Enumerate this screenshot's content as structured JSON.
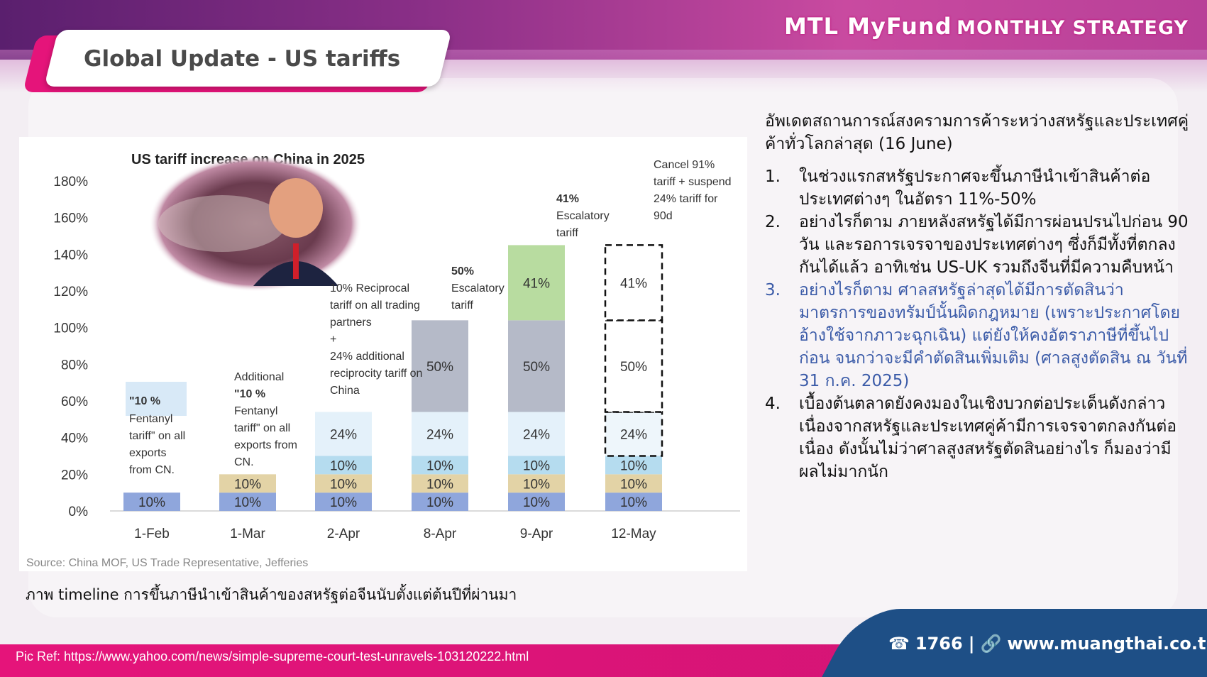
{
  "header": {
    "brand_main": "MTL MyFund",
    "brand_sub": "MONTHLY STRATEGY",
    "title": "Global Update - US tariffs"
  },
  "chart_data": {
    "type": "bar",
    "stacked": true,
    "title": "US tariff increase on China in 2025",
    "source": "Source: China MOF, US Trade Representative, Jefferies",
    "categories": [
      "1-Feb",
      "1-Mar",
      "2-Apr",
      "8-Apr",
      "9-Apr",
      "12-May"
    ],
    "ylim": [
      0,
      180
    ],
    "yticks": [
      "0%",
      "20%",
      "40%",
      "60%",
      "80%",
      "100%",
      "120%",
      "140%",
      "160%",
      "180%"
    ],
    "series": [
      {
        "values": [
          10,
          10,
          10,
          10,
          10,
          10
        ],
        "labels": [
          "10%",
          "10%",
          "10%",
          "10%",
          "10%",
          "10%"
        ],
        "color": "#8fa6dc"
      },
      {
        "values": [
          0,
          10,
          10,
          10,
          10,
          10
        ],
        "labels": [
          "",
          "10%",
          "10%",
          "10%",
          "10%",
          "10%"
        ],
        "color": "#e3d3a6"
      },
      {
        "values": [
          0,
          0,
          10,
          10,
          10,
          10
        ],
        "labels": [
          "",
          "",
          "10%",
          "10%",
          "10%",
          "10%"
        ],
        "color": "#b5dcef"
      },
      {
        "values": [
          0,
          0,
          24,
          24,
          24,
          24
        ],
        "labels": [
          "",
          "",
          "24%",
          "24%",
          "24%",
          "24%"
        ],
        "color": "#e4f1fa"
      },
      {
        "values": [
          0,
          0,
          0,
          50,
          50,
          50
        ],
        "labels": [
          "",
          "",
          "",
          "50%",
          "50%",
          "50%"
        ],
        "color": "#b5bac8"
      },
      {
        "values": [
          0,
          0,
          0,
          0,
          41,
          41
        ],
        "labels": [
          "",
          "",
          "",
          "",
          "41%",
          "41%"
        ],
        "color": "#b8dca0"
      }
    ],
    "dashed_category": "12-May",
    "annotations": {
      "feb_1": "\"10 %",
      "feb_2": "Fentanyl",
      "feb_3": "tariff\" on all",
      "feb_4": "exports",
      "feb_5": "from CN.",
      "mar_1": "Additional",
      "mar_2": "\"10 %",
      "mar_3": "Fentanyl",
      "mar_4": "tariff\" on all",
      "mar_5": "exports from",
      "mar_6": "CN.",
      "apr2_1": "10% Reciprocal",
      "apr2_2": "tariff on all trading",
      "apr2_3": "partners",
      "apr2_4": "+",
      "apr2_5": "24% additional",
      "apr2_6": "reciprocity tariff on",
      "apr2_7": "China",
      "apr8_1": "50%",
      "apr8_2": "Escalatory",
      "apr8_3": "tariff",
      "apr9_1": "41%",
      "apr9_2": "Escalatory",
      "apr9_3": "tariff",
      "may_1": "Cancel 91%",
      "may_2": "tariff + suspend",
      "may_3": "24% tariff for",
      "may_4": "90d"
    }
  },
  "caption": "ภาพ timeline การขึ้นภาษีนำเข้าสินค้าของสหรัฐต่อจีนนับตั้งแต่ต้นปีที่ผ่านมา",
  "right_text": {
    "intro": "อัพเดตสถานการณ์สงครามการค้าระหว่างสหรัฐและประเทศคู่ค้าทั่วโลกล่าสุด (16 June)",
    "points": [
      {
        "num": "1.",
        "text": "ในช่วงแรกสหรัฐประกาศจะขึ้นภาษีนำเข้าสินค้าต่อประเทศต่างๆ ในอัตรา 11%-50%"
      },
      {
        "num": "2.",
        "text": "อย่างไรก็ตาม ภายหลังสหรัฐได้มีการผ่อนปรนไปก่อน 90 วัน และรอการเจรจาของประเทศต่างๆ ซึ่งก็มีทั้งที่ตกลงกันได้แล้ว อาทิเช่น US-UK รวมถึงจีนที่มีความคืบหน้า"
      },
      {
        "num": "3.",
        "text": "อย่างไรก็ตาม ศาลสหรัฐล่าสุดได้มีการตัดสินว่ามาตรการของทรัมป์นั้นผิดกฎหมาย (เพราะประกาศโดยอ้างใช้จากภาวะฉุกเฉิน) แต่ยังให้คงอัตราภาษีที่ขึ้นไปก่อน จนกว่าจะมีคำตัดสินเพิ่มเติม (ศาลสูงตัดสิน ณ วันที่ 31 ก.ค. 2025)"
      },
      {
        "num": "4.",
        "text": "เบื้องต้นตลาดยังคงมองในเชิงบวกต่อประเด็นดังกล่าว เนื่องจากสหรัฐและประเทศคู่ค้ามีการเจรจาตกลงกันต่อเนื่อง ดังนั้นไม่ว่าศาลสูงสหรัฐตัดสินอย่างไร ก็มองว่ามีผลไม่มากนัก"
      }
    ]
  },
  "footer": {
    "pic_ref": "Pic Ref: https://www.yahoo.com/news/simple-supreme-court-test-unravels-103120222.html",
    "phone": "1766",
    "separator": "|",
    "website": "www.muangthai.co.th",
    "phone_icon": "☎",
    "link_icon": "🔗"
  }
}
